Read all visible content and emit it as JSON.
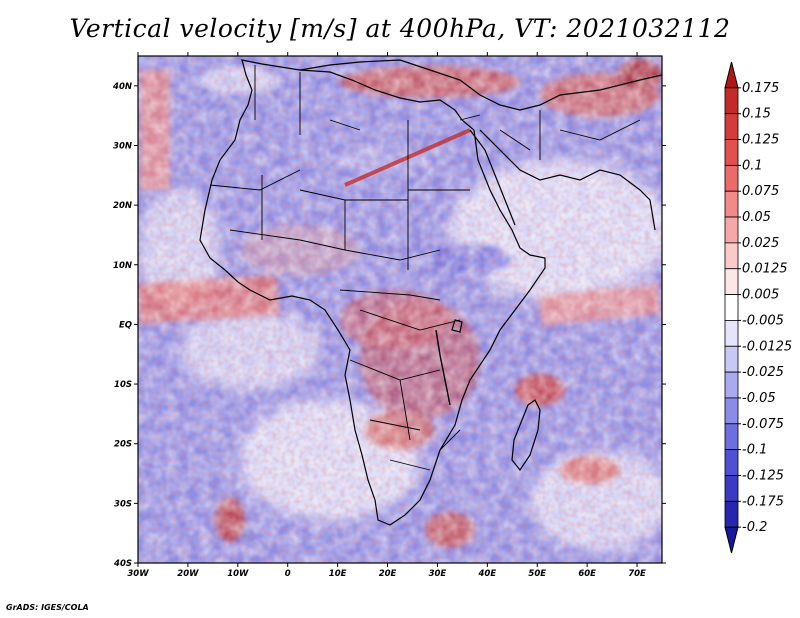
{
  "title": "Vertical velocity [m/s] at 400hPa, VT: 2021032112",
  "footer": "GrADS: IGES/COLA",
  "map": {
    "lon_range": [
      -30,
      75
    ],
    "lat_range": [
      -40,
      45
    ],
    "lon_ticks": [
      {
        "value": -30,
        "label": "30W"
      },
      {
        "value": -20,
        "label": "20W"
      },
      {
        "value": -10,
        "label": "10W"
      },
      {
        "value": 0,
        "label": "0"
      },
      {
        "value": 10,
        "label": "10E"
      },
      {
        "value": 20,
        "label": "20E"
      },
      {
        "value": 30,
        "label": "30E"
      },
      {
        "value": 40,
        "label": "40E"
      },
      {
        "value": 50,
        "label": "50E"
      },
      {
        "value": 60,
        "label": "60E"
      },
      {
        "value": 70,
        "label": "70E"
      }
    ],
    "lat_ticks": [
      {
        "value": 40,
        "label": "40N"
      },
      {
        "value": 30,
        "label": "30N"
      },
      {
        "value": 20,
        "label": "20N"
      },
      {
        "value": 10,
        "label": "10N"
      },
      {
        "value": 0,
        "label": "EQ"
      },
      {
        "value": -10,
        "label": "10S"
      },
      {
        "value": -20,
        "label": "20S"
      },
      {
        "value": -30,
        "label": "30S"
      },
      {
        "value": -40,
        "label": "40S"
      }
    ]
  },
  "colorbar": {
    "labels": [
      "0.175",
      "0.15",
      "0.125",
      "0.1",
      "0.075",
      "0.05",
      "0.025",
      "0.0125",
      "0.005",
      "-0.005",
      "-0.0125",
      "-0.025",
      "-0.05",
      "-0.075",
      "-0.1",
      "-0.125",
      "-0.175",
      "-0.2"
    ],
    "colors": [
      "#b01818",
      "#c42a2a",
      "#d43c3c",
      "#e25050",
      "#ec6a6a",
      "#f28a8a",
      "#f6a8a8",
      "#facaca",
      "#fde6e6",
      "#ffffff",
      "#e4e4fc",
      "#c8c8f6",
      "#aaaaf0",
      "#8c8ce8",
      "#6e6ee0",
      "#5050d4",
      "#3a3ac4",
      "#2626b0",
      "#18189a"
    ]
  }
}
